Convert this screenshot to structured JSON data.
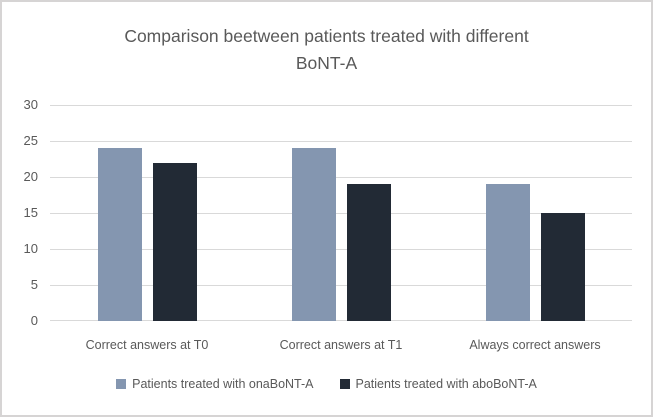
{
  "chart_data": {
    "type": "bar",
    "title": "Comparison beetween patients treated with different BoNT-A",
    "categories": [
      "Correct answers at T0",
      "Correct answers at T1",
      "Always correct answers"
    ],
    "series": [
      {
        "name": "Patients treated with onaBoNT-A",
        "color": "#8496B0",
        "values": [
          24,
          24,
          19
        ]
      },
      {
        "name": "Patients treated with aboBoNT-A",
        "color": "#222A35",
        "values": [
          22,
          19,
          15
        ]
      }
    ],
    "ylim": [
      0,
      30
    ],
    "yticks": [
      0,
      5,
      10,
      15,
      20,
      25,
      30
    ],
    "grid": true,
    "legend_position": "bottom",
    "colors": {
      "text": "#595959",
      "gridline": "#D9D9D9",
      "frame_border": "#D6D4D4",
      "background": "#FFFFFF"
    }
  }
}
